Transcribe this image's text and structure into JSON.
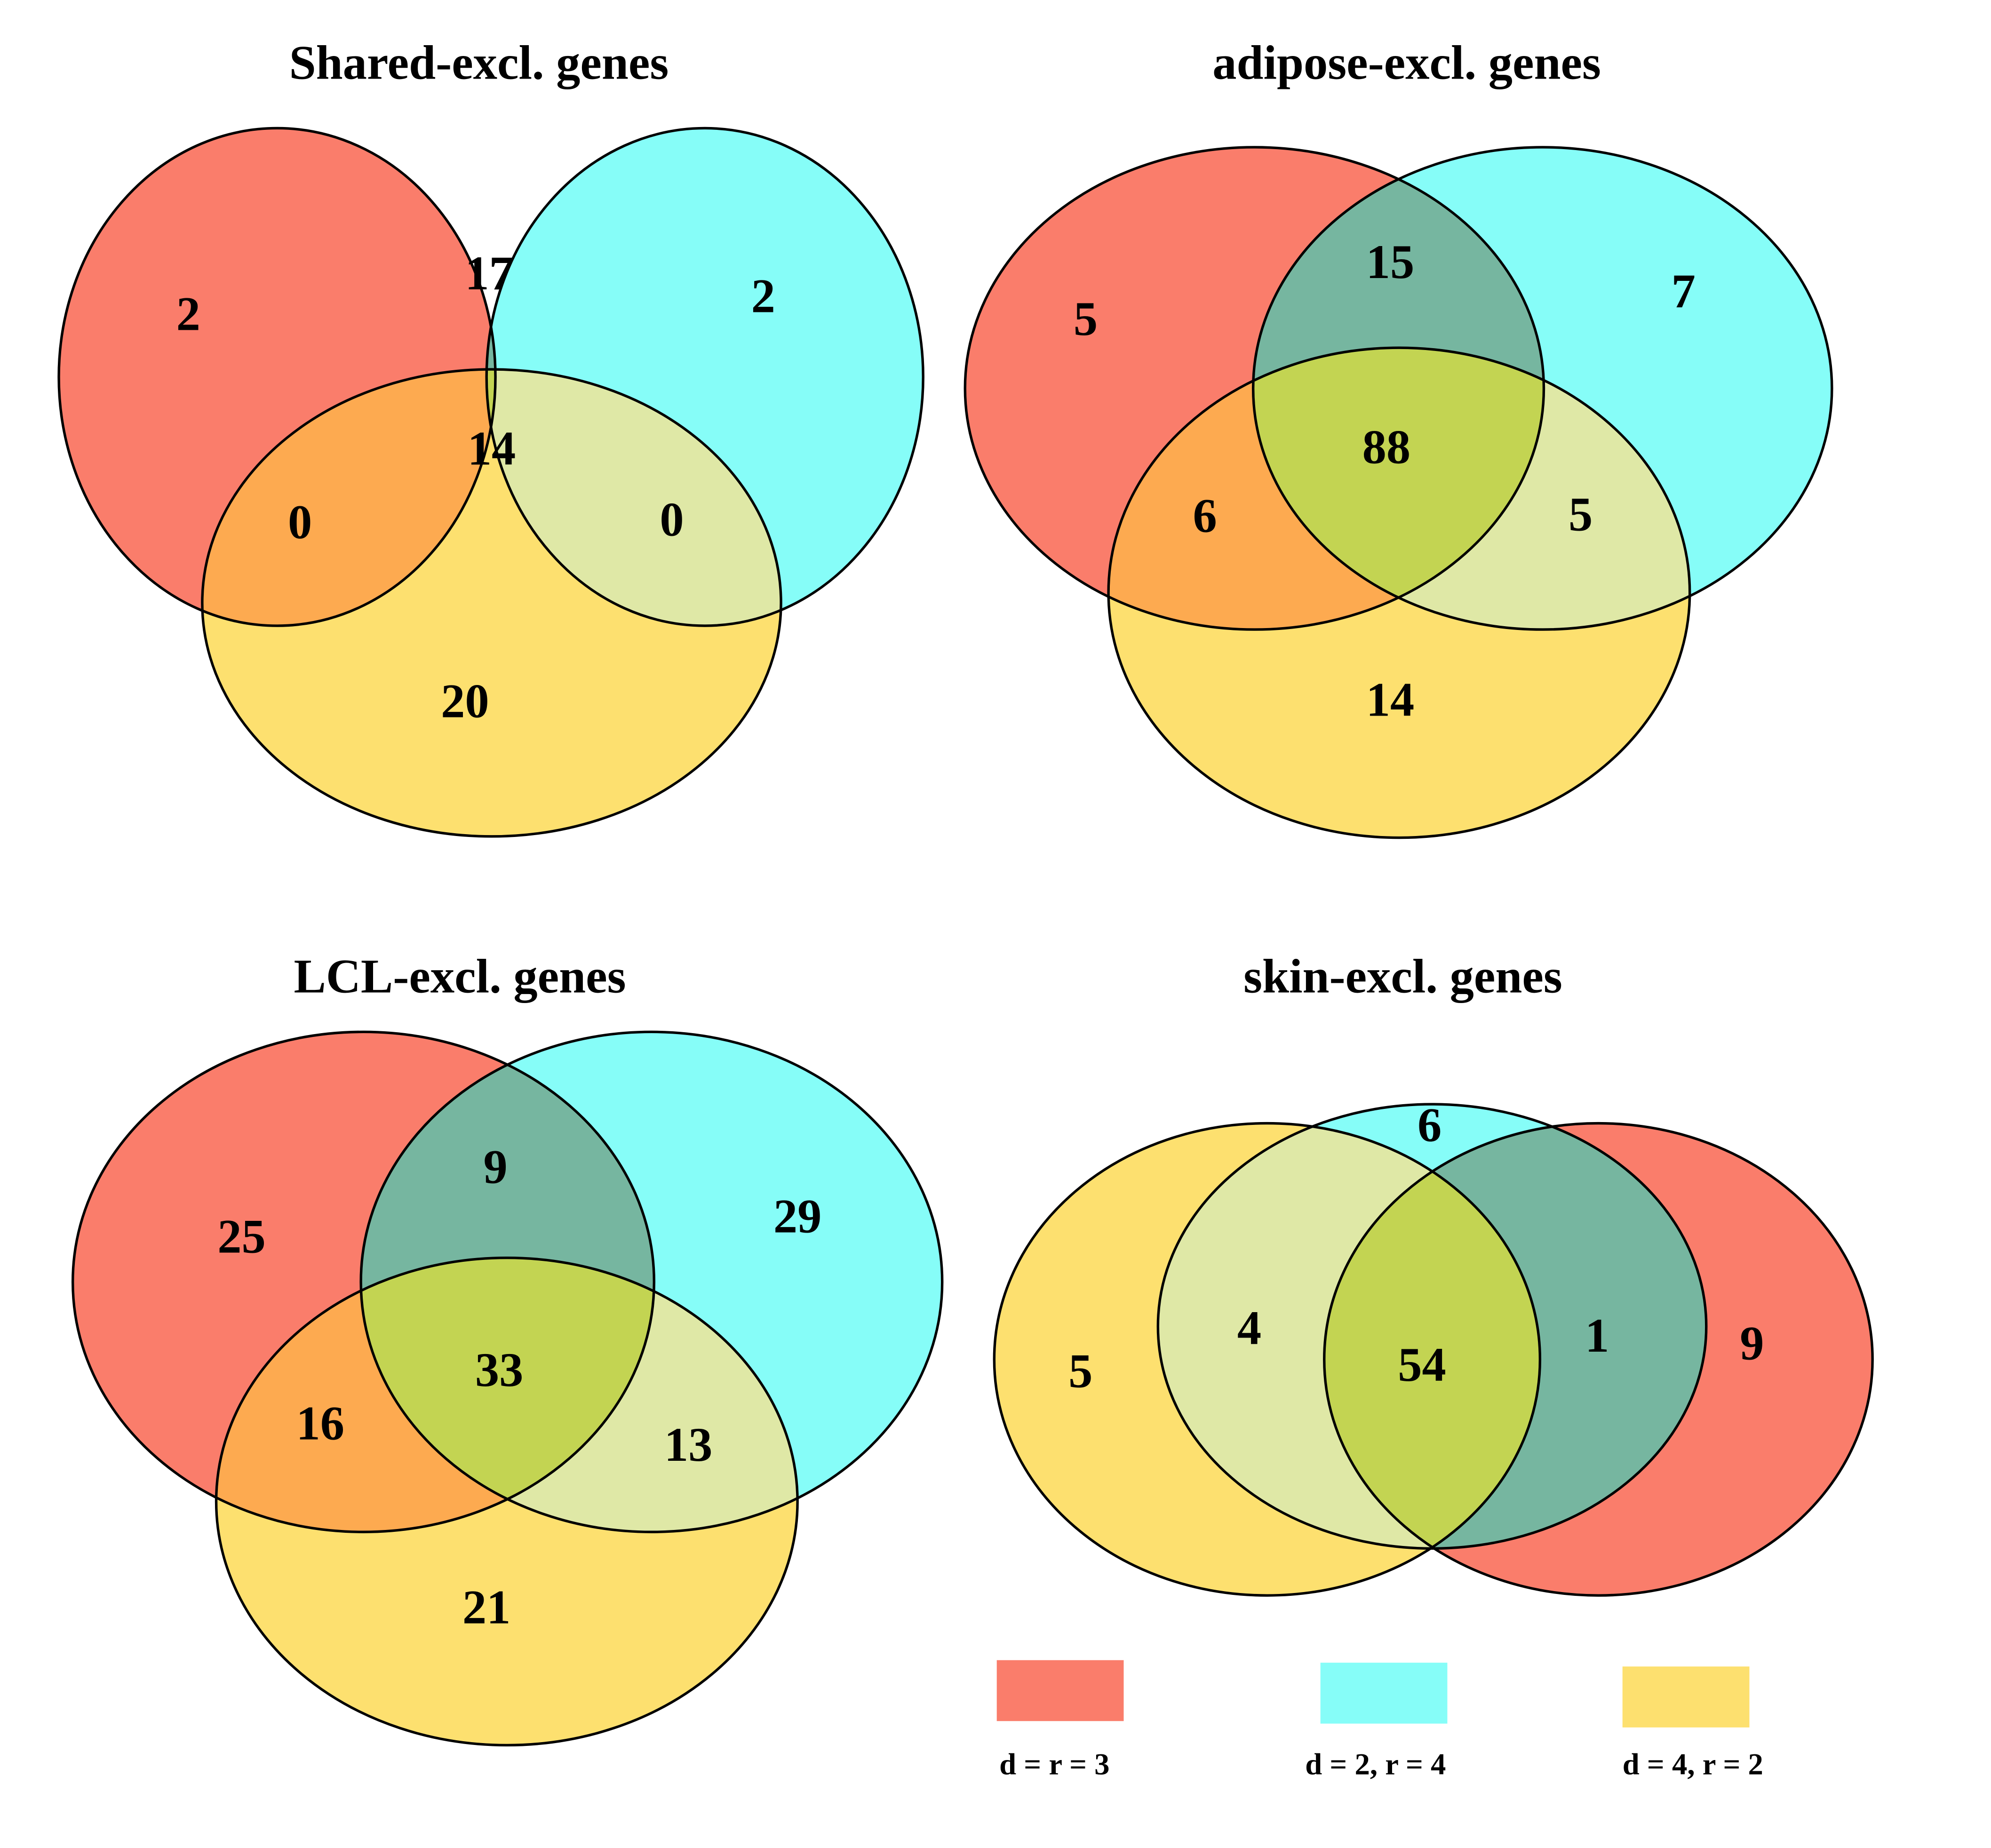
{
  "colors": {
    "set_a": "#fa7d6b",
    "set_b": "#86fdf8",
    "set_c": "#fde06f",
    "ab": "#76b6a0",
    "ac": "#fdaa50",
    "bc": "#dfe8a6",
    "abc": "#c3d452"
  },
  "legend": [
    {
      "label": "d = r = 3",
      "color": "#fa7d6b"
    },
    {
      "label": "d = 2, r = 4",
      "color": "#86fdf8"
    },
    {
      "label": "d = 4, r = 2",
      "color": "#fde06f"
    }
  ],
  "chart_data": [
    {
      "type": "venn",
      "title": "Shared-excl. genes",
      "sets": [
        "d = r = 3",
        "d = 2, r = 4",
        "d = 4, r = 2"
      ],
      "regions": {
        "A_only": 2,
        "B_only": 2,
        "C_only": 20,
        "AB": 17,
        "AC": 0,
        "BC": 0,
        "ABC": 14
      }
    },
    {
      "type": "venn",
      "title": "adipose-excl. genes",
      "sets": [
        "d = r = 3",
        "d = 2, r = 4",
        "d = 4, r = 2"
      ],
      "regions": {
        "A_only": 5,
        "B_only": 7,
        "C_only": 14,
        "AB": 15,
        "AC": 6,
        "BC": 5,
        "ABC": 88
      }
    },
    {
      "type": "venn",
      "title": "LCL-excl. genes",
      "sets": [
        "d = r = 3",
        "d = 2, r = 4",
        "d = 4, r = 2"
      ],
      "regions": {
        "A_only": 25,
        "B_only": 29,
        "C_only": 21,
        "AB": 9,
        "AC": 16,
        "BC": 13,
        "ABC": 33
      }
    },
    {
      "type": "venn",
      "title": "skin-excl. genes",
      "sets": [
        "d = r = 3",
        "d = 2, r = 4",
        "d = 4, r = 2"
      ],
      "regions": {
        "A_only": 9,
        "B_only": 6,
        "C_only": 5,
        "AB": 1,
        "AC": 0,
        "BC": 4,
        "ABC": 54
      }
    }
  ],
  "panels": [
    {
      "title": "Shared-excl. genes",
      "a": "2",
      "b": "2",
      "c": "20",
      "ab": "17",
      "ac": "0",
      "bc": "0",
      "abc": "14"
    },
    {
      "title": "adipose-excl. genes",
      "a": "5",
      "b": "7",
      "c": "14",
      "ab": "15",
      "ac": "6",
      "bc": "5",
      "abc": "88"
    },
    {
      "title": "LCL-excl. genes",
      "a": "25",
      "b": "29",
      "c": "21",
      "ab": "9",
      "ac": "16",
      "bc": "13",
      "abc": "33"
    },
    {
      "title": "skin-excl. genes",
      "a": "9",
      "b": "6",
      "c": "5",
      "ab": "1",
      "bc": "4",
      "abc": "54"
    }
  ]
}
